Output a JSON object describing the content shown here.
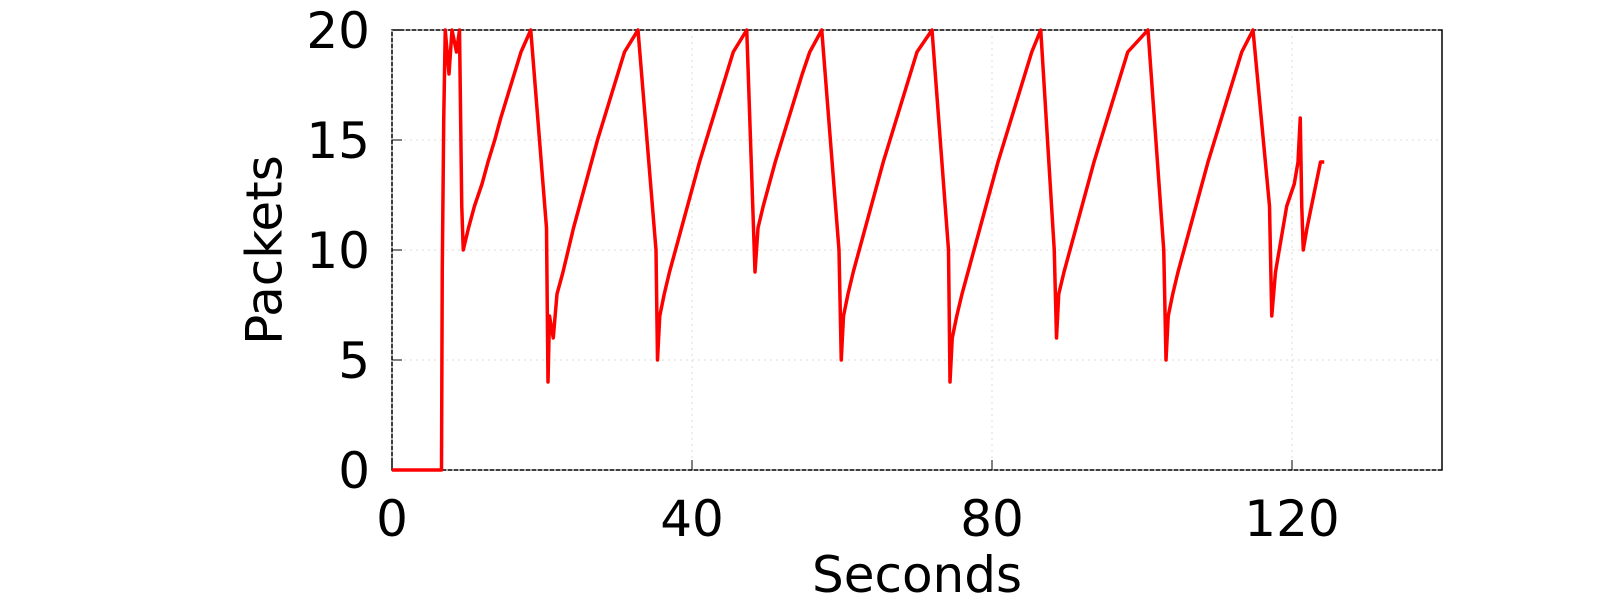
{
  "chart_data": {
    "type": "line",
    "x_label": "Seconds",
    "y_label": "Packets",
    "xlim": [
      0,
      140
    ],
    "ylim": [
      0,
      20
    ],
    "xticks": [
      0,
      40,
      80,
      120
    ],
    "yticks": [
      0,
      5,
      10,
      15,
      20
    ],
    "grid": true,
    "series": [
      {
        "color": "#ff0000",
        "x": [
          0,
          6.6,
          6.7,
          6.9,
          7.1,
          7.6,
          8,
          8.6,
          9,
          9.3,
          9.5,
          10.2,
          11,
          12,
          12.8,
          13.7,
          14.5,
          15.4,
          16.3,
          17.2,
          18.5,
          20.6,
          20.8,
          21,
          21.5,
          22,
          22.8,
          23.5,
          24.2,
          25,
          25.8,
          26.6,
          27.4,
          28.3,
          29.2,
          30.1,
          31,
          32.8,
          35.2,
          35.4,
          35.7,
          36.3,
          37,
          37.8,
          38.6,
          39.4,
          40.2,
          41,
          41.9,
          42.8,
          43.7,
          44.6,
          45.5,
          47.3,
          48.2,
          48.4,
          48.8,
          49.5,
          50.3,
          51.1,
          52,
          52.9,
          53.8,
          54.7,
          55.7,
          57.3,
          59.6,
          59.9,
          60.2,
          60.8,
          61.5,
          62.3,
          63.1,
          63.9,
          64.7,
          65.5,
          66.4,
          67.3,
          68.2,
          69.1,
          70,
          72,
          74.2,
          74.4,
          74.7,
          75.3,
          76,
          76.8,
          77.6,
          78.4,
          79.2,
          80,
          80.8,
          81.7,
          82.6,
          83.5,
          84.4,
          85.3,
          86.5,
          88.3,
          88.6,
          88.9,
          89.6,
          90.4,
          91.2,
          92,
          92.8,
          93.6,
          94.5,
          95.4,
          96.3,
          97.2,
          98.1,
          100.8,
          102.9,
          103.2,
          103.5,
          104.1,
          104.8,
          105.6,
          106.4,
          107.2,
          108,
          108.8,
          109.7,
          110.6,
          111.5,
          112.4,
          113.3,
          114.8,
          117,
          117.3,
          117.8,
          118.3,
          119.3,
          120.3,
          120.8,
          121.1,
          121.3,
          121.5,
          122,
          122.6,
          123.2,
          123.8,
          124.3
        ],
        "values": [
          0,
          0,
          9,
          16,
          20,
          18,
          20,
          19,
          20,
          12,
          10,
          11,
          12,
          13,
          14,
          15,
          16,
          17,
          18,
          19,
          20,
          11,
          4,
          7,
          6,
          8,
          9,
          10,
          11,
          12,
          13,
          14,
          15,
          16,
          17,
          18,
          19,
          20,
          10,
          5,
          7,
          8,
          9,
          10,
          11,
          12,
          13,
          14,
          15,
          16,
          17,
          18,
          19,
          20,
          11,
          9,
          11,
          12,
          13,
          14,
          15,
          16,
          17,
          18,
          19,
          20,
          10,
          5,
          7,
          8,
          9,
          10,
          11,
          12,
          13,
          14,
          15,
          16,
          17,
          18,
          19,
          20,
          10,
          4,
          6,
          7,
          8,
          9,
          10,
          11,
          12,
          13,
          14,
          15,
          16,
          17,
          18,
          19,
          20,
          10,
          6,
          8,
          9,
          10,
          11,
          12,
          13,
          14,
          15,
          16,
          17,
          18,
          19,
          20,
          10,
          5,
          7,
          8,
          9,
          10,
          11,
          12,
          13,
          14,
          15,
          16,
          17,
          18,
          19,
          20,
          12,
          7,
          9,
          10,
          12,
          13,
          14,
          16,
          12,
          10,
          11,
          12,
          13,
          14,
          14
        ]
      }
    ]
  }
}
